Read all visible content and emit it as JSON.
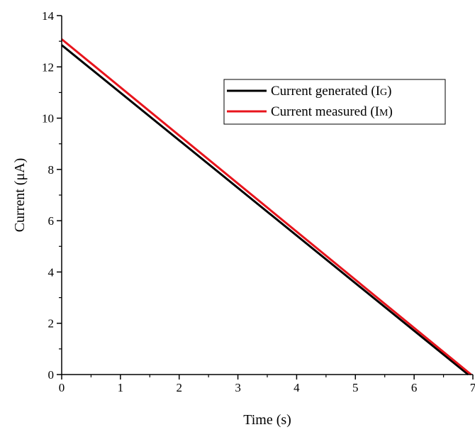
{
  "chart_data": {
    "type": "line",
    "title": "",
    "xlabel": "Time (s)",
    "ylabel": "Current (μA)",
    "xlim": [
      0,
      7
    ],
    "ylim": [
      0,
      14
    ],
    "x_ticks": [
      "0",
      "1",
      "2",
      "3",
      "4",
      "5",
      "6",
      "7"
    ],
    "y_ticks": [
      "0",
      "2",
      "4",
      "6",
      "8",
      "10",
      "12",
      "14"
    ],
    "grid": false,
    "legend_position": "top-right",
    "series": [
      {
        "name": "Current generated (IG)",
        "name_main": "Current generated (I",
        "name_sub": "G",
        "name_end": ")",
        "color": "#000000",
        "x": [
          0,
          6.92
        ],
        "y": [
          12.85,
          0
        ]
      },
      {
        "name": "Current measured (IM)",
        "name_main": "Current measured (I",
        "name_sub": "M",
        "name_end": ")",
        "color": "#e8141c",
        "x": [
          0,
          6.97
        ],
        "y": [
          13.08,
          0
        ]
      }
    ]
  }
}
